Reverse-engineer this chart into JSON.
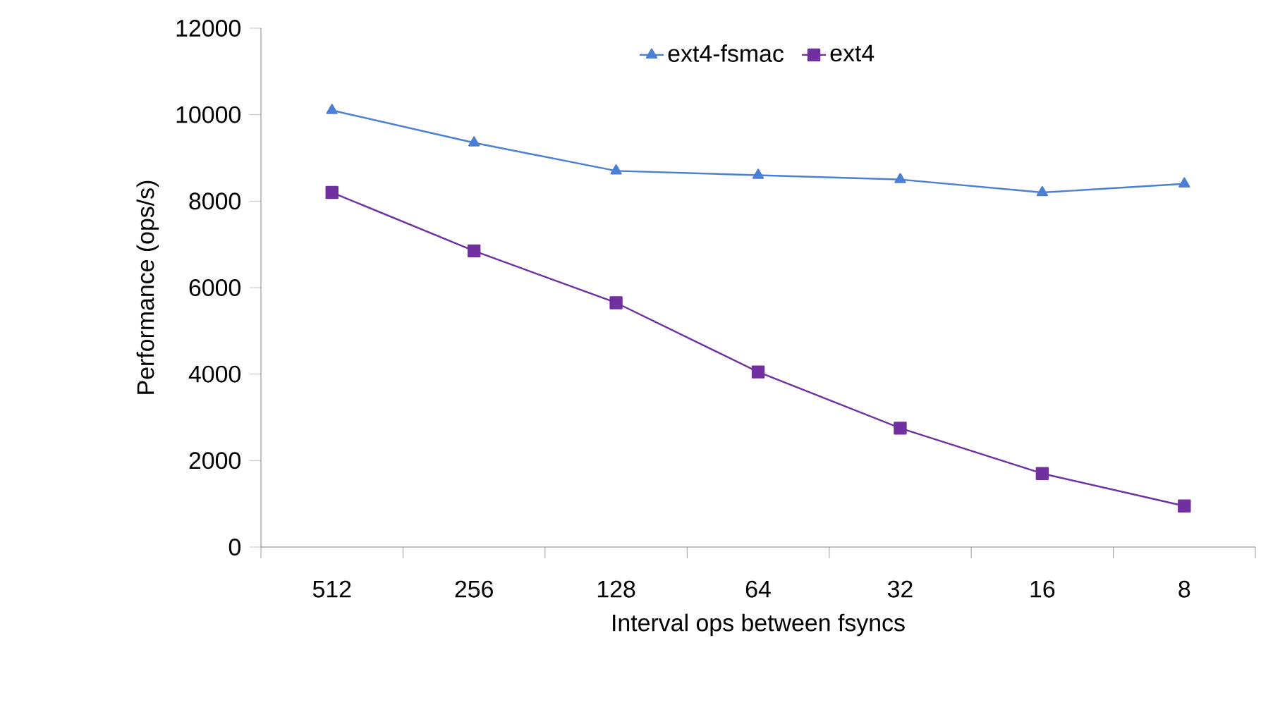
{
  "chart_data": {
    "type": "line",
    "xlabel": "Interval ops between fsyncs",
    "ylabel": "Performance (ops/s)",
    "categories": [
      "512",
      "256",
      "128",
      "64",
      "32",
      "16",
      "8"
    ],
    "series": [
      {
        "name": "ext4-fsmac",
        "color": "#4a7fd4",
        "marker": "triangle",
        "values": [
          10100,
          9350,
          8700,
          8600,
          8500,
          8200,
          8400
        ]
      },
      {
        "name": "ext4",
        "color": "#7030a0",
        "marker": "square",
        "values": [
          8200,
          6850,
          5650,
          4050,
          2750,
          1700,
          950
        ]
      }
    ],
    "ylim": [
      0,
      12000
    ],
    "yticks": [
      0,
      2000,
      4000,
      6000,
      8000,
      10000,
      12000
    ],
    "grid": false,
    "legend": "top",
    "line_style": "solid"
  }
}
